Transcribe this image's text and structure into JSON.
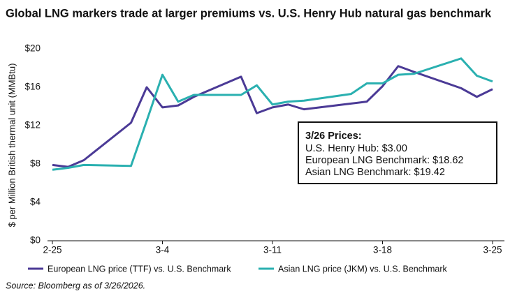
{
  "chart_data": {
    "type": "line",
    "title": "Global LNG markers trade at larger premiums vs. U.S. Henry Hub natural gas benchmark",
    "y_label": "$ per Million British thermal unit (MMBtu)",
    "x": [
      "2-25",
      "2-26",
      "2-27",
      "3-2",
      "3-3",
      "3-4",
      "3-5",
      "3-6",
      "3-9",
      "3-10",
      "3-11",
      "3-12",
      "3-13",
      "3-16",
      "3-17",
      "3-18",
      "3-19",
      "3-20",
      "3-23",
      "3-24",
      "3-25"
    ],
    "series": [
      {
        "name": "European LNG price (TTF) vs. U.S. Benchmark",
        "color": "#4b3a96",
        "values": [
          7.9,
          7.7,
          8.4,
          12.3,
          16.0,
          13.9,
          14.1,
          15.0,
          17.1,
          13.3,
          13.9,
          14.2,
          13.7,
          14.3,
          14.5,
          16.1,
          18.2,
          17.6,
          15.9,
          15.0,
          15.8
        ]
      },
      {
        "name": "Asian LNG price (JKM) vs. U.S. Benchmark",
        "color": "#2ab0b0",
        "values": [
          7.4,
          7.6,
          7.9,
          7.8,
          12.5,
          17.3,
          14.5,
          15.2,
          15.2,
          16.2,
          14.2,
          14.5,
          14.6,
          15.3,
          16.4,
          16.4,
          17.3,
          17.4,
          19.0,
          17.2,
          16.6
        ]
      }
    ],
    "xticks": [
      "2-25",
      "3-4",
      "3-11",
      "3-18",
      "3-25"
    ],
    "xlim": [
      "2-25",
      "3-25"
    ],
    "ylim": [
      0,
      20
    ],
    "yticks": [
      {
        "value": 0,
        "label": "$0"
      },
      {
        "value": 4,
        "label": "$4"
      },
      {
        "value": 8,
        "label": "$8"
      },
      {
        "value": 12,
        "label": "$12"
      },
      {
        "value": 16,
        "label": "$16"
      },
      {
        "value": 20,
        "label": "$20"
      }
    ],
    "annotation": {
      "title": "3/26 Prices:",
      "lines": [
        "U.S. Henry Hub: $3.00",
        "European LNG Benchmark: $18.62",
        "Asian LNG Benchmark: $19.42"
      ]
    },
    "source": "Source: Bloomberg as of 3/26/2026."
  }
}
